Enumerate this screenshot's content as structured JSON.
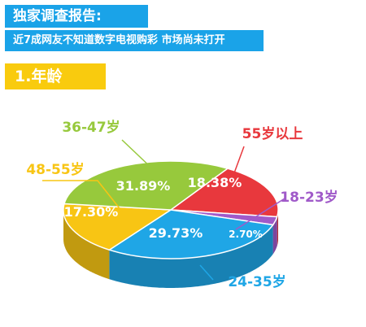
{
  "header": {
    "title": "独家调查报告:",
    "subtitle": "近7成网友不知道数字电视购彩 市场尚未打开"
  },
  "section": {
    "title": "1.年龄"
  },
  "chart_data": {
    "type": "pie",
    "title": "",
    "categories": [
      "55岁以上",
      "18-23岁",
      "24-35岁",
      "48-55岁",
      "36-47岁"
    ],
    "values": [
      18.38,
      2.7,
      29.73,
      17.3,
      31.89
    ],
    "value_labels": [
      "18.38%",
      "2.70%",
      "29.73%",
      "17.30%",
      "31.89%"
    ],
    "colors": [
      "#e8383d",
      "#a05ac9",
      "#1fa6e6",
      "#f8c514",
      "#97c93c"
    ]
  }
}
